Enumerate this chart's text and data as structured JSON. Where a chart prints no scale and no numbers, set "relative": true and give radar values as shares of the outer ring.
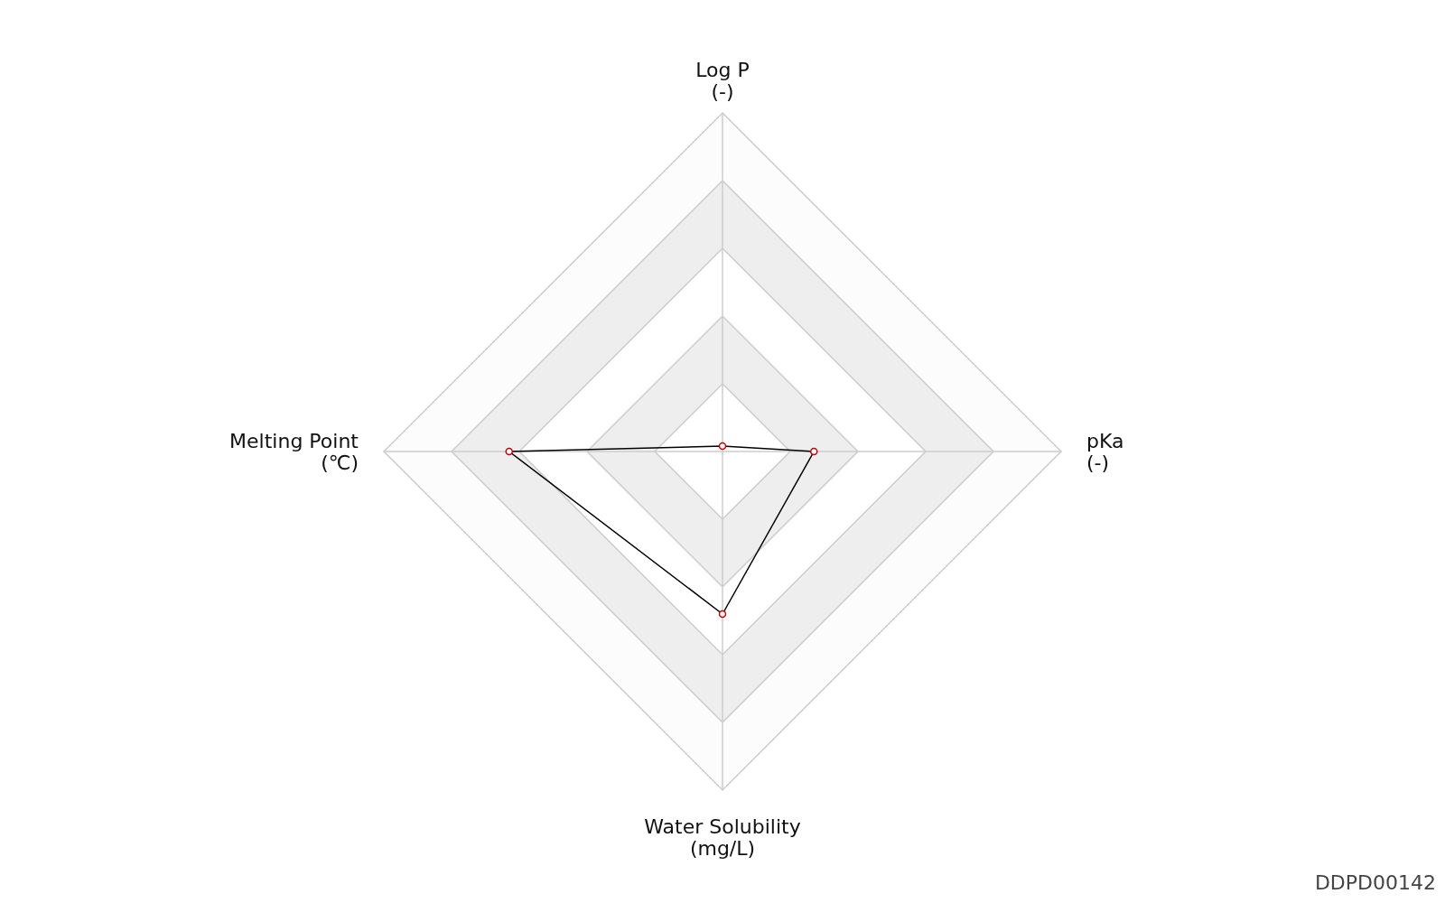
{
  "chart_data": {
    "type": "radar",
    "relative": true,
    "categories": [
      "Log P\n(-)",
      "pKa\n(-)",
      "Water Solubility\n(mg/L)",
      "Melting Point\n(℃)"
    ],
    "series": [
      {
        "color": "#000000",
        "values": [
          0.016,
          0.27,
          0.48,
          0.63
        ]
      }
    ],
    "marker": "circle",
    "annotations": [
      "DDPD00142"
    ]
  }
}
